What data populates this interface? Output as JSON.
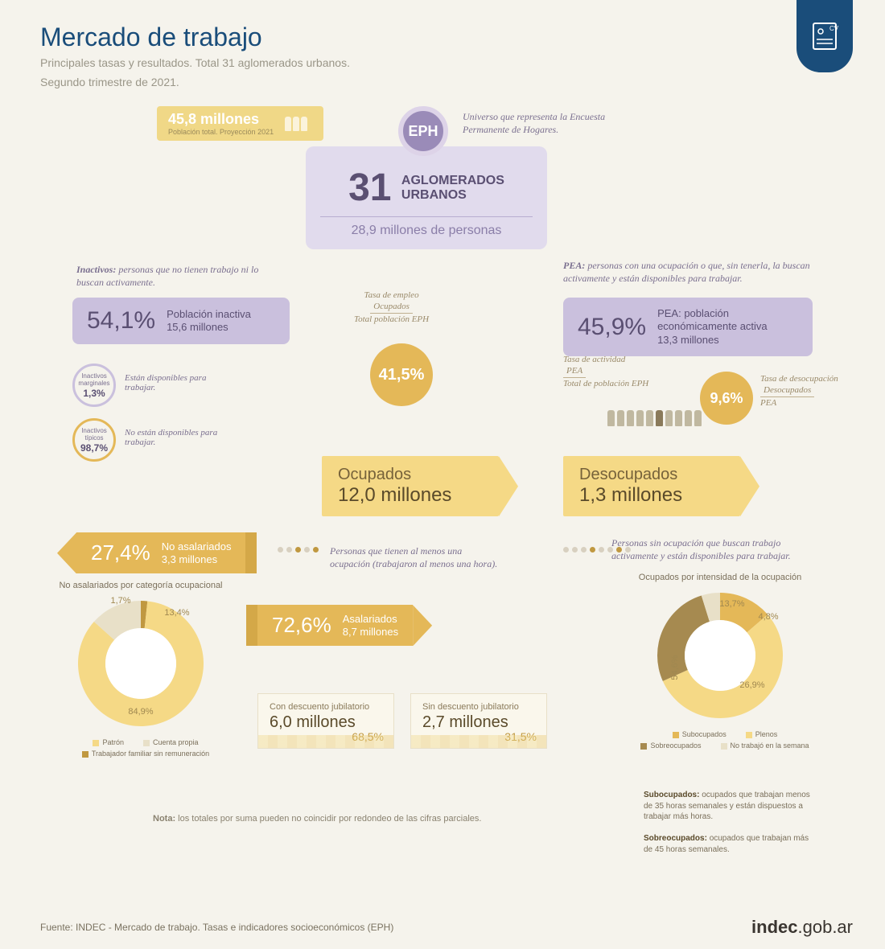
{
  "header": {
    "title": "Mercado de trabajo",
    "subtitle1": "Principales tasas y resultados. Total 31 aglomerados urbanos.",
    "subtitle2": "Segundo trimestre de 2021."
  },
  "colors": {
    "bg": "#f5f3ec",
    "blue": "#1a4d7a",
    "purple_light": "#e1dbed",
    "purple_mid": "#cac0dd",
    "purple_dark": "#5a4f72",
    "purple_accent": "#9a8bb8",
    "yellow_light": "#f5d986",
    "yellow_mid": "#f0d887",
    "orange": "#e4b858",
    "orange_dark": "#c09840",
    "brown": "#a68a50",
    "text_muted": "#9a9688"
  },
  "population": {
    "value": "45,8 millones",
    "label": "Población total. Proyección 2021"
  },
  "eph": {
    "badge": "EPH",
    "note": "Universo que representa la Encuesta Permanente de Hogares."
  },
  "aglomerados": {
    "number": "31",
    "label1": "AGLOMERADOS",
    "label2": "URBANOS",
    "persons": "28,9 millones de personas"
  },
  "inactivos": {
    "def_label": "Inactivos:",
    "def": "personas que no tienen trabajo ni lo buscan activamente.",
    "pct": "54,1%",
    "label": "Población inactiva",
    "value": "15,6 millones",
    "marginales": {
      "title": "Inactivos marginales",
      "pct": "1,3%",
      "note": "Están disponibles para trabajar."
    },
    "tipicos": {
      "title": "Inactivos típicos",
      "pct": "98,7%",
      "note": "No están disponibles para trabajar."
    }
  },
  "pea": {
    "def_label": "PEA:",
    "def": "personas con una ocupación o que, sin tenerla, la buscan activamente y están disponibles para trabajar.",
    "pct": "45,9%",
    "label": "PEA: población económicamente activa",
    "value": "13,3 millones"
  },
  "tasa_empleo": {
    "title": "Tasa de empleo",
    "num": "Ocupados",
    "den": "Total población EPH",
    "pct": "41,5%"
  },
  "tasa_actividad": {
    "title": "Tasa de actividad",
    "num": "PEA",
    "den": "Total de población EPH"
  },
  "tasa_desocup": {
    "pct": "9,6%",
    "title": "Tasa de desocupación",
    "num": "Desocupados",
    "den": "PEA"
  },
  "ocupados": {
    "title": "Ocupados",
    "value": "12,0 millones",
    "def": "Personas que tienen al menos una ocupación (trabajaron al menos una hora)."
  },
  "desocupados": {
    "title": "Desocupados",
    "value": "1,3 millones",
    "def": "Personas sin ocupación que buscan trabajo activamente y están disponibles para trabajar."
  },
  "no_asalariados": {
    "pct": "27,4%",
    "label": "No asalariados",
    "value": "3,3 millones"
  },
  "asalariados": {
    "pct": "72,6%",
    "label": "Asalariados",
    "value": "8,7 millones"
  },
  "con_descuento": {
    "label": "Con descuento jubilatorio",
    "value": "6,0 millones",
    "pct": "68,5%"
  },
  "sin_descuento": {
    "label": "Sin descuento jubilatorio",
    "value": "2,7 millones",
    "pct": "31,5%"
  },
  "donut_no_asal": {
    "title": "No asalariados por categoría ocupacional",
    "slices": [
      {
        "label": "Patrón",
        "pct": 1.7,
        "color": "#c09840"
      },
      {
        "label": "Cuenta propia",
        "pct": 84.9,
        "color": "#f5d986"
      },
      {
        "label": "Trabajador familiar sin remuneración",
        "pct": 13.4,
        "color": "#e8e0c8"
      }
    ],
    "legend": [
      "Patrón",
      "Cuenta propia",
      "Trabajador familiar sin remuneración"
    ],
    "legend_colors": [
      "#f5d986",
      "#e8e0c8",
      "#c09840"
    ]
  },
  "donut_intensidad": {
    "title": "Ocupados por intensidad de la ocupación",
    "slices": [
      {
        "label": "Subocupados",
        "pct": 13.7,
        "color": "#e4b858"
      },
      {
        "label": "Plenos",
        "pct": 54.6,
        "color": "#f5d986"
      },
      {
        "label": "Sobreocupados",
        "pct": 26.9,
        "color": "#a68a50"
      },
      {
        "label": "No trabajó en la semana",
        "pct": 4.8,
        "color": "#e8e0c8"
      }
    ],
    "legend": [
      "Subocupados",
      "Plenos",
      "Sobreocupados",
      "No trabajó en la semana"
    ],
    "legend_colors": [
      "#e4b858",
      "#f5d986",
      "#a68a50",
      "#e8e0c8"
    ],
    "defs": {
      "sub_label": "Subocupados:",
      "sub": "ocupados que trabajan menos de 35 horas semanales y están dispuestos a trabajar más horas.",
      "sobre_label": "Sobreocupados:",
      "sobre": "ocupados que trabajan más de 45 horas semanales."
    }
  },
  "nota_label": "Nota:",
  "nota": "los totales por suma pueden no coincidir por redondeo de las cifras parciales.",
  "fuente_label": "Fuente:",
  "fuente": "INDEC - Mercado de trabajo. Tasas e indicadores socioeconómicos (EPH)",
  "logo": {
    "bold": "indec",
    "rest": ".gob.ar"
  }
}
